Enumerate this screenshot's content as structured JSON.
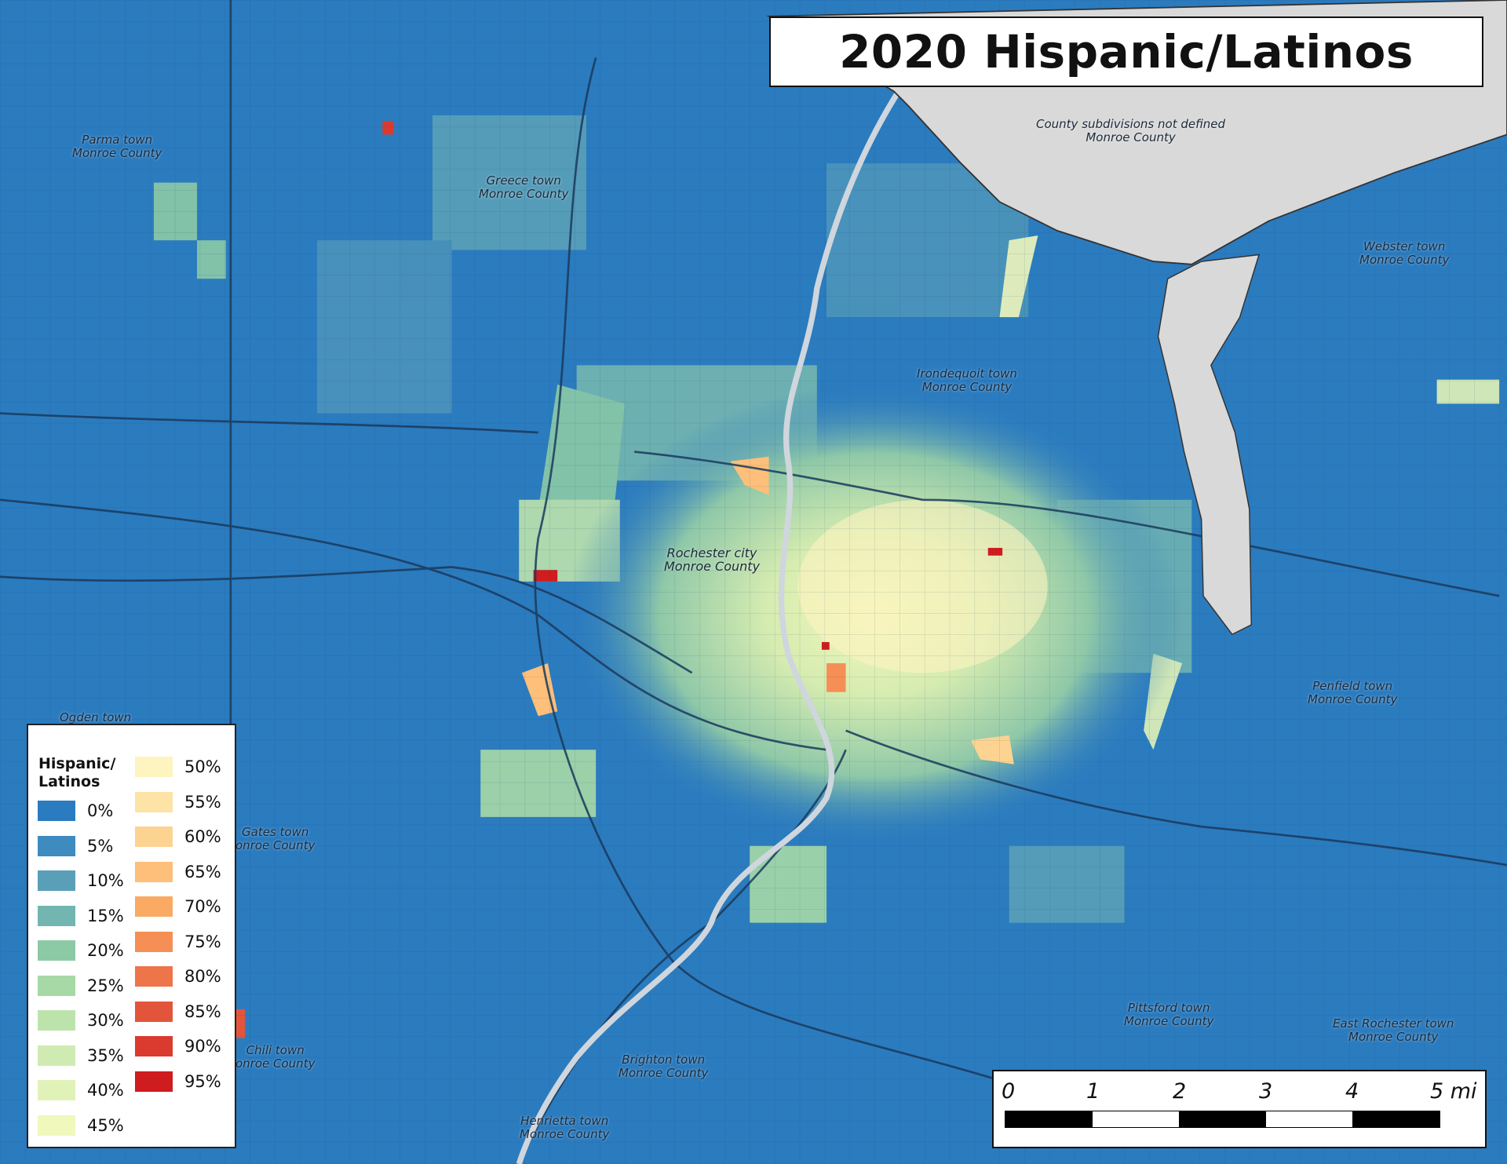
{
  "title": "2020 Hispanic/Latinos",
  "colors": {
    "base_blue": "#2b7bbf",
    "water": "#d9d9d9"
  },
  "places": {
    "lake_note": [
      "County subdivisions not defined",
      "Monroe County"
    ],
    "parma": [
      "Parma town",
      "Monroe County"
    ],
    "greece": [
      "Greece town",
      "Monroe County"
    ],
    "irondequoit": [
      "Irondequoit town",
      "Monroe County"
    ],
    "webster": [
      "Webster town",
      "Monroe County"
    ],
    "rochester": [
      "Rochester city",
      "Monroe County"
    ],
    "penfield": [
      "Penfield town",
      "Monroe County"
    ],
    "ogden": [
      "Ogden town"
    ],
    "gates": [
      "Gates town",
      "onroe County"
    ],
    "chili": [
      "Chili town",
      "onroe County"
    ],
    "brighton": [
      "Brighton town",
      "Monroe County"
    ],
    "henrietta": [
      "Henrietta town",
      "Monroe County"
    ],
    "pittsford": [
      "Pittsford town",
      "Monroe County"
    ],
    "east_rochester": [
      "East Rochester town",
      "Monroe County"
    ]
  },
  "legend": {
    "title_line1": "Hispanic/",
    "title_line2": "Latinos",
    "items": [
      {
        "label": "0%",
        "color": "#2b7bc0"
      },
      {
        "label": "5%",
        "color": "#3d8bbf"
      },
      {
        "label": "10%",
        "color": "#599fb8"
      },
      {
        "label": "15%",
        "color": "#73b5b0"
      },
      {
        "label": "20%",
        "color": "#8ccaa6"
      },
      {
        "label": "25%",
        "color": "#a6d9a6"
      },
      {
        "label": "30%",
        "color": "#bde3ad"
      },
      {
        "label": "35%",
        "color": "#cfebb3"
      },
      {
        "label": "40%",
        "color": "#e1f2b8"
      },
      {
        "label": "45%",
        "color": "#f1f8bc"
      },
      {
        "label": "50%",
        "color": "#fdf4bf"
      },
      {
        "label": "55%",
        "color": "#fde3a6"
      },
      {
        "label": "60%",
        "color": "#fdd392"
      },
      {
        "label": "65%",
        "color": "#fdbf7a"
      },
      {
        "label": "70%",
        "color": "#fbaa63"
      },
      {
        "label": "75%",
        "color": "#f58f55"
      },
      {
        "label": "80%",
        "color": "#ee7449"
      },
      {
        "label": "85%",
        "color": "#e3553b"
      },
      {
        "label": "90%",
        "color": "#db3a2f"
      },
      {
        "label": "95%",
        "color": "#cf1c1f"
      }
    ]
  },
  "scale_bar": {
    "labels": [
      "0",
      "1",
      "2",
      "3",
      "4",
      "5 mi"
    ]
  }
}
